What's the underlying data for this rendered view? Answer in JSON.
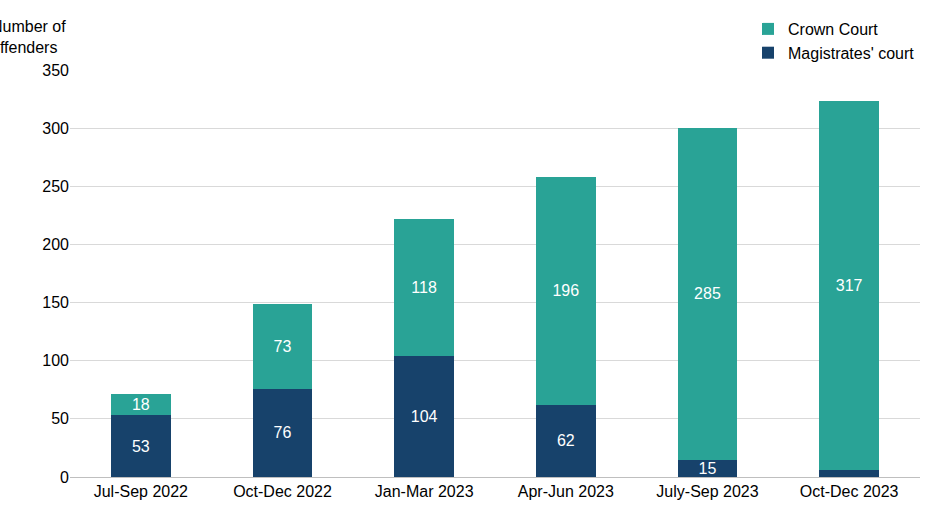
{
  "chart_data": {
    "type": "bar",
    "stacked": true,
    "y_label": "Number of offenders",
    "categories": [
      "Jul-Sep 2022",
      "Oct-Dec 2022",
      "Jan-Mar 2023",
      "Apr-Jun 2023",
      "July-Sep 2023",
      "Oct-Dec 2023"
    ],
    "series": [
      {
        "name": "Magistrates' court",
        "color": "#17426b",
        "values": [
          53,
          76,
          104,
          62,
          15,
          6
        ],
        "value_labels": [
          "53",
          "76",
          "104",
          "62",
          "15",
          null
        ]
      },
      {
        "name": "Crown Court",
        "color": "#29a396",
        "values": [
          18,
          73,
          118,
          196,
          285,
          317
        ]
      }
    ],
    "ylim": [
      0,
      350
    ],
    "yticks": [
      0,
      50,
      100,
      150,
      200,
      250,
      300,
      350
    ],
    "grid": true,
    "legend": "top-right",
    "data_labels": true
  }
}
